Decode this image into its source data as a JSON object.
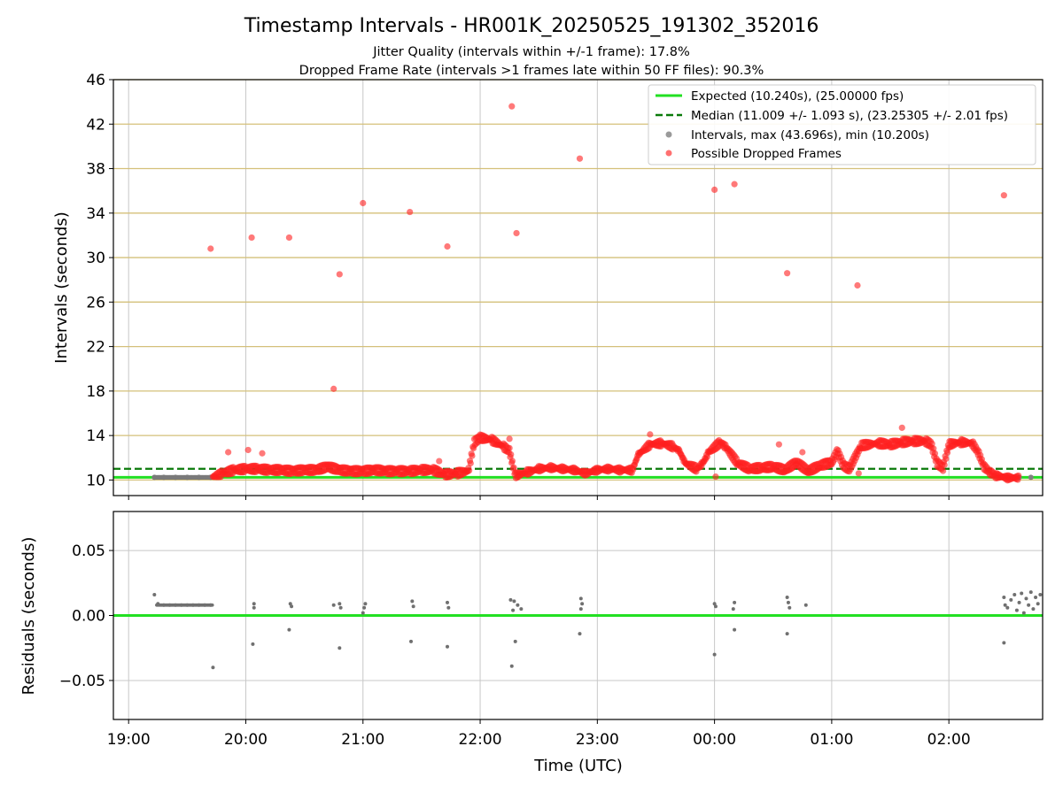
{
  "chart_data": {
    "type": "scatter",
    "title": "Timestamp Intervals - HR001K_20250525_191302_352016",
    "subtitle_lines": [
      "Jitter Quality (intervals within +/-1 frame): 17.8%",
      "Dropped Frame Rate (intervals >1 frames late within 50 FF files): 90.3%"
    ],
    "xlabel": "Time (UTC)",
    "x_ticks": [
      "19:00",
      "20:00",
      "21:00",
      "22:00",
      "23:00",
      "00:00",
      "01:00",
      "02:00"
    ],
    "x_range_hours": [
      18.87,
      26.8
    ],
    "top_panel": {
      "ylabel": "Intervals (seconds)",
      "ylim": [
        8.6,
        46
      ],
      "y_ticks": [
        10,
        14,
        18,
        22,
        26,
        30,
        34,
        38,
        42,
        46
      ],
      "horizontal_grid_color": "#d4c07a",
      "vertical_grid": true,
      "expected_interval": 10.24,
      "median_interval": 11.009,
      "legend_position": "top-right",
      "legend": [
        {
          "label": "Expected (10.240s), (25.00000 fps)",
          "style": "solid-line",
          "color": "#22e022"
        },
        {
          "label": "Median (11.009 +/- 1.093 s), (23.25305 +/- 2.01 fps)",
          "style": "dashed-line",
          "color": "#0a7a0a"
        },
        {
          "label": "Intervals, max (43.696s), min (10.200s)",
          "style": "marker",
          "color": "#9a9a9a"
        },
        {
          "label": "Possible Dropped Frames",
          "style": "marker",
          "color": "#ff3333"
        }
      ],
      "normal_intervals": [
        {
          "x": 19.22,
          "y": 10.24
        },
        {
          "x": 19.3,
          "y": 10.24
        },
        {
          "x": 19.4,
          "y": 10.24
        },
        {
          "x": 19.5,
          "y": 10.24
        },
        {
          "x": 19.6,
          "y": 10.24
        },
        {
          "x": 19.7,
          "y": 10.24
        },
        {
          "x": 26.5,
          "y": 10.24
        },
        {
          "x": 26.6,
          "y": 10.24
        },
        {
          "x": 26.7,
          "y": 10.24
        }
      ],
      "dropped_isolated": [
        {
          "x": 19.7,
          "y": 30.8
        },
        {
          "x": 20.05,
          "y": 31.8
        },
        {
          "x": 20.37,
          "y": 31.8
        },
        {
          "x": 20.75,
          "y": 18.2
        },
        {
          "x": 20.8,
          "y": 28.5
        },
        {
          "x": 21.0,
          "y": 34.9
        },
        {
          "x": 21.4,
          "y": 34.1
        },
        {
          "x": 21.72,
          "y": 31.0
        },
        {
          "x": 22.27,
          "y": 43.6
        },
        {
          "x": 22.31,
          "y": 32.2
        },
        {
          "x": 22.85,
          "y": 38.9
        },
        {
          "x": 24.0,
          "y": 36.1
        },
        {
          "x": 24.17,
          "y": 36.6
        },
        {
          "x": 24.62,
          "y": 28.6
        },
        {
          "x": 25.22,
          "y": 27.5
        },
        {
          "x": 26.47,
          "y": 35.6
        },
        {
          "x": 19.85,
          "y": 12.5
        },
        {
          "x": 20.02,
          "y": 12.7
        },
        {
          "x": 20.14,
          "y": 12.4
        },
        {
          "x": 21.65,
          "y": 11.7
        },
        {
          "x": 22.25,
          "y": 13.7
        },
        {
          "x": 23.45,
          "y": 14.1
        },
        {
          "x": 24.55,
          "y": 13.2
        },
        {
          "x": 24.75,
          "y": 12.5
        },
        {
          "x": 25.6,
          "y": 14.7
        },
        {
          "x": 25.23,
          "y": 10.6
        },
        {
          "x": 24.01,
          "y": 10.3
        }
      ],
      "dropped_trend": [
        [
          19.72,
          10.3
        ],
        [
          19.8,
          10.6
        ],
        [
          19.9,
          10.9
        ],
        [
          20.0,
          11.0
        ],
        [
          20.1,
          11.0
        ],
        [
          20.2,
          10.9
        ],
        [
          20.3,
          10.9
        ],
        [
          20.4,
          10.8
        ],
        [
          20.5,
          10.9
        ],
        [
          20.6,
          10.9
        ],
        [
          20.7,
          11.2
        ],
        [
          20.8,
          10.9
        ],
        [
          20.9,
          10.8
        ],
        [
          21.0,
          10.8
        ],
        [
          21.1,
          10.9
        ],
        [
          21.2,
          10.8
        ],
        [
          21.3,
          10.8
        ],
        [
          21.4,
          10.8
        ],
        [
          21.5,
          10.9
        ],
        [
          21.6,
          10.9
        ],
        [
          21.7,
          10.5
        ],
        [
          21.8,
          10.6
        ],
        [
          21.9,
          10.8
        ],
        [
          21.95,
          13.4
        ],
        [
          22.0,
          13.8
        ],
        [
          22.1,
          13.6
        ],
        [
          22.2,
          13.0
        ],
        [
          22.25,
          12.6
        ],
        [
          22.3,
          10.4
        ],
        [
          22.4,
          10.7
        ],
        [
          22.5,
          11.0
        ],
        [
          22.6,
          11.1
        ],
        [
          22.7,
          11.0
        ],
        [
          22.8,
          10.9
        ],
        [
          22.9,
          10.6
        ],
        [
          23.0,
          10.9
        ],
        [
          23.1,
          11.0
        ],
        [
          23.2,
          10.9
        ],
        [
          23.3,
          10.9
        ],
        [
          23.35,
          12.3
        ],
        [
          23.45,
          13.2
        ],
        [
          23.55,
          13.3
        ],
        [
          23.65,
          13.0
        ],
        [
          23.7,
          12.6
        ],
        [
          23.75,
          11.5
        ],
        [
          23.85,
          11.0
        ],
        [
          23.9,
          11.5
        ],
        [
          23.95,
          12.5
        ],
        [
          24.05,
          13.4
        ],
        [
          24.1,
          12.9
        ],
        [
          24.2,
          11.5
        ],
        [
          24.3,
          11.0
        ],
        [
          24.4,
          11.1
        ],
        [
          24.5,
          11.2
        ],
        [
          24.6,
          10.9
        ],
        [
          24.7,
          11.6
        ],
        [
          24.8,
          10.8
        ],
        [
          24.9,
          11.3
        ],
        [
          25.0,
          11.6
        ],
        [
          25.05,
          12.6
        ],
        [
          25.1,
          11.3
        ],
        [
          25.15,
          11.0
        ],
        [
          25.25,
          13.1
        ],
        [
          25.4,
          13.3
        ],
        [
          25.5,
          13.2
        ],
        [
          25.6,
          13.4
        ],
        [
          25.7,
          13.5
        ],
        [
          25.8,
          13.5
        ],
        [
          25.85,
          13.2
        ],
        [
          25.9,
          11.5
        ],
        [
          25.95,
          11.1
        ],
        [
          26.0,
          13.2
        ],
        [
          26.1,
          13.4
        ],
        [
          26.2,
          13.3
        ],
        [
          26.25,
          12.5
        ],
        [
          26.3,
          11.2
        ],
        [
          26.35,
          10.7
        ],
        [
          26.4,
          10.4
        ],
        [
          26.5,
          10.2
        ],
        [
          26.6,
          10.2
        ]
      ]
    },
    "bottom_panel": {
      "ylabel": "Residuals (seconds)",
      "ylim": [
        -0.08,
        0.08
      ],
      "y_ticks": [
        0.05,
        0.0,
        -0.05
      ],
      "y_tick_labels": [
        "0.05",
        "0.00",
        "−0.05"
      ],
      "zero_line_color": "#22e022",
      "points": [
        {
          "x": 19.22,
          "y": 0.016
        },
        {
          "x": 19.25,
          "y": 0.009
        },
        {
          "x": 19.3,
          "y": 0.008
        },
        {
          "x": 19.35,
          "y": 0.008
        },
        {
          "x": 19.4,
          "y": 0.008
        },
        {
          "x": 19.45,
          "y": 0.008
        },
        {
          "x": 19.5,
          "y": 0.008
        },
        {
          "x": 19.55,
          "y": 0.008
        },
        {
          "x": 19.6,
          "y": 0.008
        },
        {
          "x": 19.65,
          "y": 0.008
        },
        {
          "x": 19.7,
          "y": 0.008
        },
        {
          "x": 19.72,
          "y": -0.04
        },
        {
          "x": 20.07,
          "y": 0.009
        },
        {
          "x": 20.07,
          "y": 0.006
        },
        {
          "x": 20.06,
          "y": -0.022
        },
        {
          "x": 20.38,
          "y": 0.009
        },
        {
          "x": 20.39,
          "y": 0.007
        },
        {
          "x": 20.37,
          "y": -0.011
        },
        {
          "x": 20.75,
          "y": 0.008
        },
        {
          "x": 20.8,
          "y": 0.009
        },
        {
          "x": 20.81,
          "y": 0.006
        },
        {
          "x": 20.8,
          "y": -0.025
        },
        {
          "x": 21.02,
          "y": 0.009
        },
        {
          "x": 21.01,
          "y": 0.006
        },
        {
          "x": 21.0,
          "y": 0.002
        },
        {
          "x": 21.42,
          "y": 0.011
        },
        {
          "x": 21.43,
          "y": 0.007
        },
        {
          "x": 21.41,
          "y": -0.02
        },
        {
          "x": 21.72,
          "y": 0.01
        },
        {
          "x": 21.73,
          "y": 0.006
        },
        {
          "x": 21.72,
          "y": -0.024
        },
        {
          "x": 22.26,
          "y": 0.012
        },
        {
          "x": 22.29,
          "y": 0.011
        },
        {
          "x": 22.32,
          "y": 0.008
        },
        {
          "x": 22.35,
          "y": 0.005
        },
        {
          "x": 22.28,
          "y": 0.004
        },
        {
          "x": 22.3,
          "y": -0.02
        },
        {
          "x": 22.27,
          "y": -0.039
        },
        {
          "x": 22.86,
          "y": 0.013
        },
        {
          "x": 22.87,
          "y": 0.009
        },
        {
          "x": 22.86,
          "y": 0.005
        },
        {
          "x": 22.85,
          "y": -0.014
        },
        {
          "x": 24.0,
          "y": 0.009
        },
        {
          "x": 24.01,
          "y": 0.007
        },
        {
          "x": 24.0,
          "y": -0.03
        },
        {
          "x": 24.17,
          "y": 0.01
        },
        {
          "x": 24.16,
          "y": 0.005
        },
        {
          "x": 24.17,
          "y": -0.011
        },
        {
          "x": 24.62,
          "y": 0.014
        },
        {
          "x": 24.63,
          "y": 0.01
        },
        {
          "x": 24.64,
          "y": 0.006
        },
        {
          "x": 24.62,
          "y": -0.014
        },
        {
          "x": 24.78,
          "y": 0.008
        },
        {
          "x": 26.47,
          "y": 0.014
        },
        {
          "x": 26.48,
          "y": 0.008
        },
        {
          "x": 26.47,
          "y": -0.021
        },
        {
          "x": 26.5,
          "y": 0.006
        },
        {
          "x": 26.53,
          "y": 0.012
        },
        {
          "x": 26.56,
          "y": 0.016
        },
        {
          "x": 26.58,
          "y": 0.004
        },
        {
          "x": 26.6,
          "y": 0.01
        },
        {
          "x": 26.62,
          "y": 0.017
        },
        {
          "x": 26.64,
          "y": 0.002
        },
        {
          "x": 26.66,
          "y": 0.013
        },
        {
          "x": 26.68,
          "y": 0.008
        },
        {
          "x": 26.7,
          "y": 0.018
        },
        {
          "x": 26.72,
          "y": 0.005
        },
        {
          "x": 26.74,
          "y": 0.014
        },
        {
          "x": 26.76,
          "y": 0.009
        },
        {
          "x": 26.78,
          "y": 0.016
        }
      ]
    }
  }
}
